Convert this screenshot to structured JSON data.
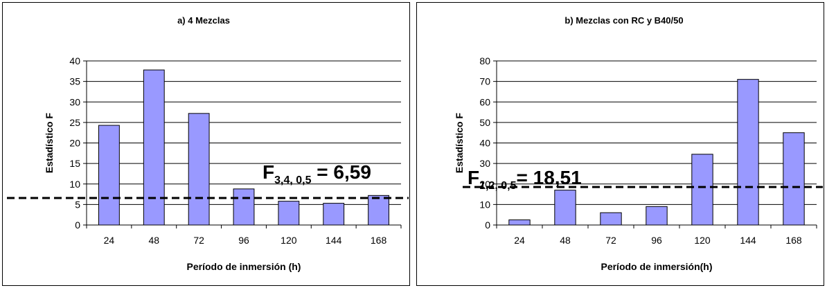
{
  "chart_data": [
    {
      "type": "bar",
      "title": "a) 4 Mezclas",
      "xlabel": "Período de inmersión (h)",
      "ylabel": "Estadístico F",
      "categories": [
        "24",
        "48",
        "72",
        "96",
        "120",
        "144",
        "168"
      ],
      "values": [
        24.3,
        37.8,
        27.2,
        8.8,
        5.8,
        5.3,
        7.2
      ],
      "ylim": [
        0,
        40
      ],
      "yticks": [
        "0",
        "5",
        "10",
        "15",
        "20",
        "25",
        "30",
        "35",
        "40"
      ],
      "grid": true,
      "bar_color": "#9999ff",
      "threshold": {
        "value": 6.59,
        "label_main": "F",
        "label_sub": "3,4, 0,5",
        "label_value": " = 6,59"
      }
    },
    {
      "type": "bar",
      "title": "b) Mezclas con RC y  B40/50",
      "xlabel": "Período de inmersión(h)",
      "ylabel": "Estadístico F",
      "categories": [
        "24",
        "48",
        "72",
        "96",
        "120",
        "144",
        "168"
      ],
      "values": [
        2.5,
        17,
        6,
        9,
        34.5,
        71,
        45
      ],
      "ylim": [
        0,
        80
      ],
      "yticks": [
        "0",
        "10",
        "20",
        "30",
        "40",
        "50",
        "60",
        "70",
        "80"
      ],
      "grid": true,
      "bar_color": "#9999ff",
      "threshold": {
        "value": 18.51,
        "label_main": "F",
        "label_sub": "1,2, 0,5",
        "label_value": "= 18,51"
      }
    }
  ]
}
